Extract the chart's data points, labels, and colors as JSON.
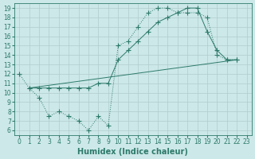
{
  "line1_x": [
    0,
    1,
    2,
    3,
    4,
    5,
    6,
    7,
    8,
    9,
    10,
    11,
    12,
    13,
    14,
    15,
    16,
    17,
    18,
    19,
    20,
    21,
    22
  ],
  "line1_y": [
    12,
    10.5,
    9.5,
    7.5,
    8.0,
    7.5,
    7.0,
    6.0,
    7.5,
    6.5,
    15.0,
    15.5,
    17.0,
    18.5,
    19.0,
    19.0,
    18.5,
    18.5,
    18.5,
    18.0,
    14.0,
    13.5,
    13.5
  ],
  "line2_x": [
    1,
    2,
    3,
    4,
    5,
    6,
    7,
    8,
    9,
    10,
    11,
    12,
    13,
    14,
    15,
    16,
    17,
    18,
    19,
    20,
    21,
    22
  ],
  "line2_y": [
    10.5,
    10.5,
    10.5,
    10.5,
    10.5,
    10.5,
    10.5,
    11.0,
    11.0,
    13.5,
    14.5,
    15.5,
    16.5,
    17.5,
    18.0,
    18.5,
    19.0,
    19.0,
    16.5,
    14.5,
    13.5,
    13.5
  ],
  "line3_x": [
    1,
    22
  ],
  "line3_y": [
    10.5,
    13.5
  ],
  "line_color": "#2d7a6a",
  "bg_color": "#cce8e8",
  "grid_color": "#b8d8d8",
  "xlabel": "Humidex (Indice chaleur)",
  "xlim": [
    -0.5,
    23.5
  ],
  "ylim": [
    5.5,
    19.5
  ],
  "xticks": [
    0,
    1,
    2,
    3,
    4,
    5,
    6,
    7,
    8,
    9,
    10,
    11,
    12,
    13,
    14,
    15,
    16,
    17,
    18,
    19,
    20,
    21,
    22,
    23
  ],
  "yticks": [
    6,
    7,
    8,
    9,
    10,
    11,
    12,
    13,
    14,
    15,
    16,
    17,
    18,
    19
  ],
  "tick_fontsize": 5.5,
  "xlabel_fontsize": 7,
  "marker_size": 2.5
}
